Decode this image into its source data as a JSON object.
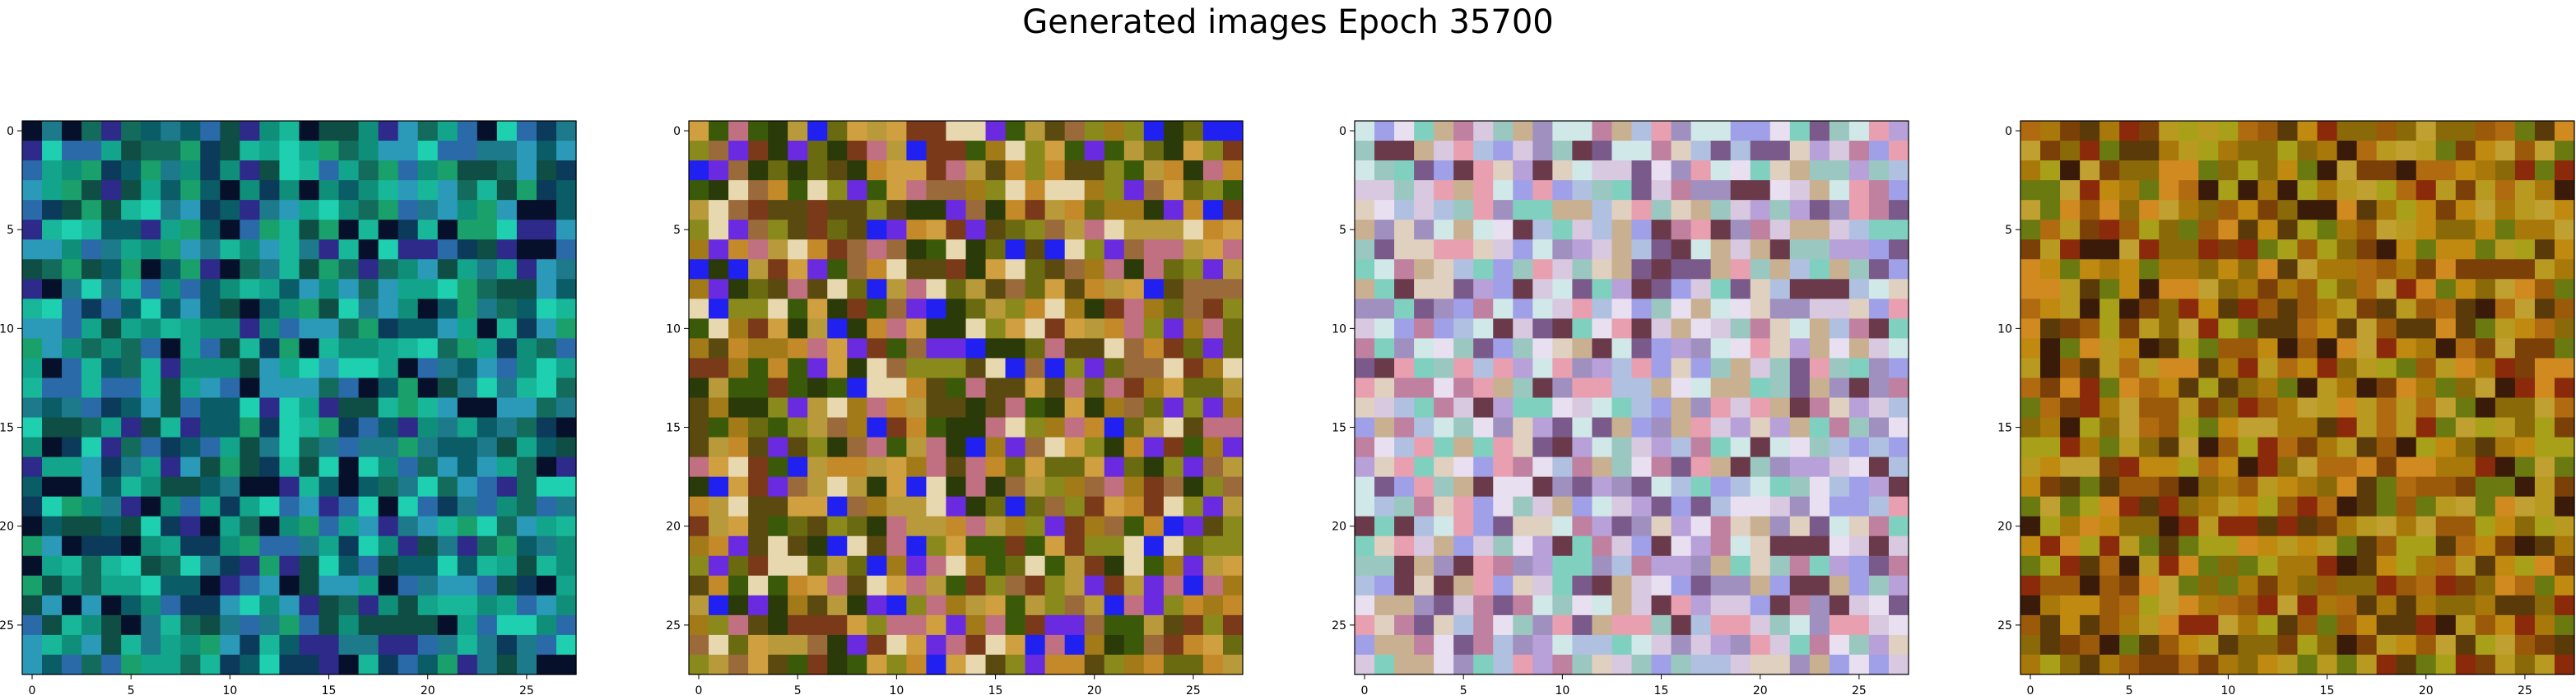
{
  "figure": {
    "title": "Generated images Epoch 35700"
  },
  "chart_data": [
    {
      "type": "heatmap",
      "title": "",
      "xlabel": "",
      "ylabel": "",
      "xlim": [
        -0.5,
        27.5
      ],
      "ylim": [
        27.5,
        -0.5
      ],
      "xticks": [
        0,
        5,
        10,
        15,
        20,
        25
      ],
      "yticks": [
        0,
        5,
        10,
        15,
        20,
        25
      ],
      "grid_size": [
        28,
        28
      ],
      "palette": [
        "#0f8f7a",
        "#12a58c",
        "#1c7a8a",
        "#0a5c66",
        "#136b5c",
        "#18b79a",
        "#2a6aa8",
        "#0c3a5a",
        "#1aa06a",
        "#0e4e44",
        "#06102a",
        "#2d2a8a",
        "#1ed0b0",
        "#2a9ab8"
      ],
      "description_color": "teal-blue-green noise"
    },
    {
      "type": "heatmap",
      "title": "",
      "xlabel": "",
      "ylabel": "",
      "xlim": [
        -0.5,
        27.5
      ],
      "ylim": [
        27.5,
        -0.5
      ],
      "xticks": [
        0,
        5,
        10,
        15,
        20,
        25
      ],
      "yticks": [
        0,
        5,
        10,
        15,
        20,
        25
      ],
      "grid_size": [
        28,
        28
      ],
      "palette": [
        "#8a8a1c",
        "#a27a18",
        "#6a6a10",
        "#c48a2a",
        "#5a4a10",
        "#9a6a3a",
        "#b89a3a",
        "#3a5a0a",
        "#2a3a08",
        "#2020f0",
        "#6a2ae0",
        "#d0a040",
        "#7a3a1a",
        "#e8d8b0",
        "#c07080"
      ],
      "description_color": "olive-brown with blue patches"
    },
    {
      "type": "heatmap",
      "title": "",
      "xlabel": "",
      "ylabel": "",
      "xlim": [
        -0.5,
        27.5
      ],
      "ylim": [
        27.5,
        -0.5
      ],
      "xticks": [
        0,
        5,
        10,
        15,
        20,
        25
      ],
      "yticks": [
        0,
        5,
        10,
        15,
        20,
        25
      ],
      "grid_size": [
        28,
        28
      ],
      "palette": [
        "#d8c8e0",
        "#b8a0d8",
        "#e8e0f0",
        "#9ac8c0",
        "#c8b090",
        "#a090c0",
        "#e0d0c0",
        "#7a5a8a",
        "#c080a0",
        "#80d0c0",
        "#e8a0b0",
        "#a0a0e8",
        "#d0e8e8",
        "#6a3a4a",
        "#b0c0e0"
      ],
      "description_color": "pastel lavender-pink noise"
    },
    {
      "type": "heatmap",
      "title": "",
      "xlabel": "",
      "ylabel": "",
      "xlim": [
        -0.5,
        27.5
      ],
      "ylim": [
        27.5,
        -0.5
      ],
      "xticks": [
        0,
        5,
        10,
        15,
        20,
        25
      ],
      "yticks": [
        0,
        5,
        10,
        15,
        20,
        25
      ],
      "grid_size": [
        28,
        28
      ],
      "palette": [
        "#a8780a",
        "#c08a10",
        "#8a6a08",
        "#b89a20",
        "#9a5a0a",
        "#7a4008",
        "#c0a030",
        "#6a7a10",
        "#d08a20",
        "#8a2a0a",
        "#5a3a08",
        "#a8a018",
        "#b06a10",
        "#3a1a08"
      ],
      "description_color": "amber-brown noise"
    }
  ]
}
